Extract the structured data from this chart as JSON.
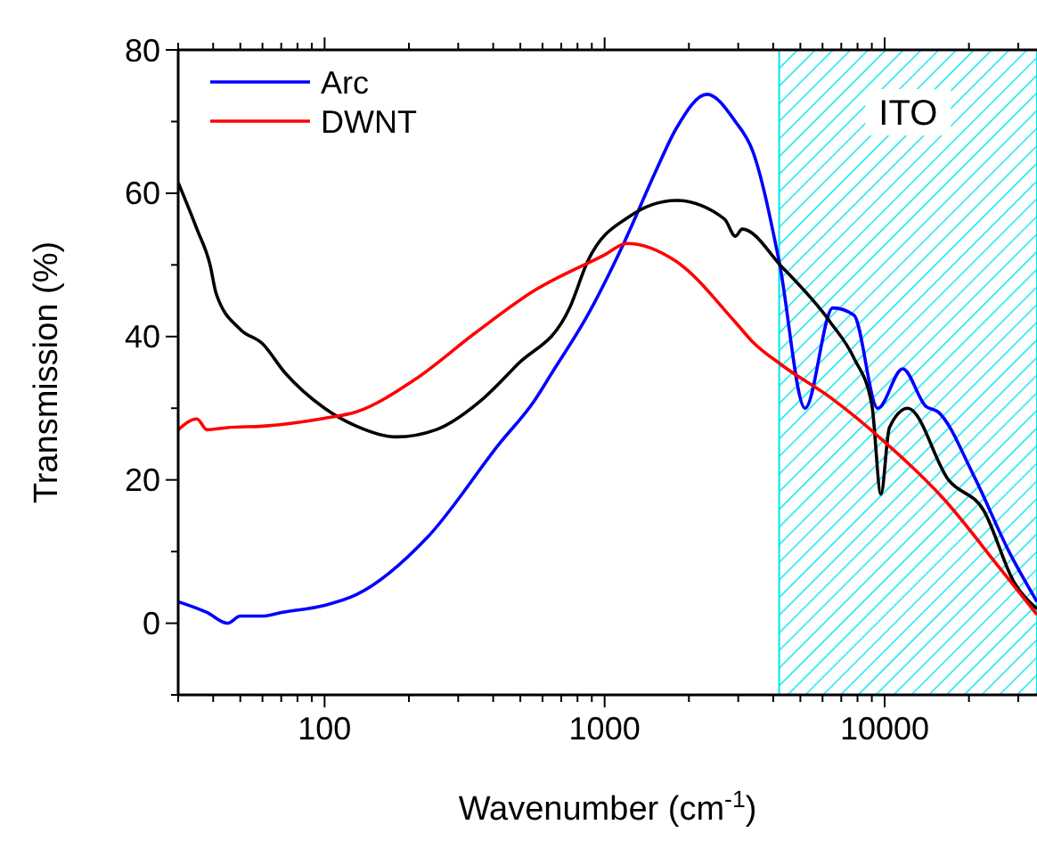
{
  "chart_data": {
    "type": "line",
    "xlabel": "Wavenumber (cm$^{-1}$)",
    "ylabel": "Transmission (%)",
    "log": "x",
    "xlim": [
      30,
      35000
    ],
    "ylim": [
      -10,
      80
    ],
    "xticks": [
      {
        "value": 30,
        "label": null
      },
      {
        "value": 40,
        "label": null
      },
      {
        "value": 50,
        "label": null
      },
      {
        "value": 60,
        "label": null
      },
      {
        "value": 70,
        "label": null
      },
      {
        "value": 80,
        "label": null
      },
      {
        "value": 90,
        "label": null
      },
      100,
      {
        "value": 200,
        "label": null
      },
      {
        "value": 300,
        "label": null
      },
      {
        "value": 400,
        "label": null
      },
      {
        "value": 500,
        "label": null
      },
      {
        "value": 600,
        "label": null
      },
      {
        "value": 700,
        "label": null
      },
      {
        "value": 800,
        "label": null
      },
      {
        "value": 900,
        "label": null
      },
      1000,
      {
        "value": 2000,
        "label": null
      },
      {
        "value": 3000,
        "label": null
      },
      {
        "value": 4000,
        "label": null
      },
      {
        "value": 5000,
        "label": null
      },
      {
        "value": 6000,
        "label": null
      },
      {
        "value": 7000,
        "label": null
      },
      {
        "value": 8000,
        "label": null
      },
      {
        "value": 9000,
        "label": null
      },
      10000,
      {
        "value": 20000,
        "label": null
      },
      {
        "value": 30000,
        "label": null
      }
    ],
    "yticks": [
      {
        "value": -10,
        "label": null
      },
      0,
      {
        "value": 10,
        "label": null
      },
      20,
      {
        "value": 30,
        "label": null
      },
      40,
      {
        "value": 50,
        "label": null
      },
      60,
      {
        "value": 70,
        "label": null
      },
      80
    ],
    "legend": "top left",
    "grid": false,
    "bands": [
      {
        "axis": "x",
        "from": 4200,
        "to": 35000,
        "label": "ITO",
        "color": "#00e5ee"
      }
    ],
    "series": [
      {
        "name": "Arc",
        "color": "#0000ff",
        "x": [
          30,
          38,
          45,
          50,
          60,
          70,
          100,
          130,
          233,
          420,
          560,
          650,
          870,
          1170,
          1520,
          1800,
          2320,
          2930,
          3370,
          4200,
          5200,
          6530,
          7770,
          9450,
          11600,
          14000,
          15500,
          20800,
          27800,
          35000
        ],
        "values": [
          3,
          1.5,
          0,
          1,
          1,
          1.5,
          2.5,
          4,
          12,
          25,
          31,
          35,
          43,
          53,
          63,
          69,
          73.8,
          70,
          66,
          50.5,
          30,
          44,
          43,
          30,
          35.5,
          30.3,
          29.5,
          20.6,
          10,
          3
        ]
      },
      {
        "color": "#000000",
        "x": [
          30,
          35,
          39,
          41,
          50,
          60,
          72,
          100,
          130,
          180,
          250,
          360,
          485,
          750,
          870,
          1220,
          1800,
          2680,
          2930,
          3100,
          4300,
          6400,
          7770,
          9000,
          9700,
          10400,
          12100,
          16900,
          22600,
          29000,
          35000
        ],
        "values": [
          61.5,
          55,
          50,
          46,
          41,
          39,
          35,
          30,
          27.5,
          26,
          27,
          31,
          36,
          44,
          50.5,
          56.7,
          59,
          56.4,
          54,
          55,
          49.7,
          42,
          37,
          30.5,
          18,
          27.3,
          30,
          20,
          15.7,
          5.7,
          2
        ]
      },
      {
        "name": "DWNT",
        "color": "#ff0000",
        "x": [
          30,
          35,
          38,
          45,
          60,
          100,
          130,
          210,
          345,
          560,
          1000,
          1200,
          1800,
          2930,
          3370,
          4300,
          6400,
          10000,
          16200,
          26000,
          35000
        ],
        "values": [
          27,
          28.5,
          27,
          27.3,
          27.5,
          28.6,
          29.5,
          34,
          40.5,
          46.4,
          51.4,
          53,
          50.5,
          42,
          39.3,
          36,
          31.5,
          25.3,
          17.4,
          7.5,
          1.2
        ]
      }
    ]
  }
}
